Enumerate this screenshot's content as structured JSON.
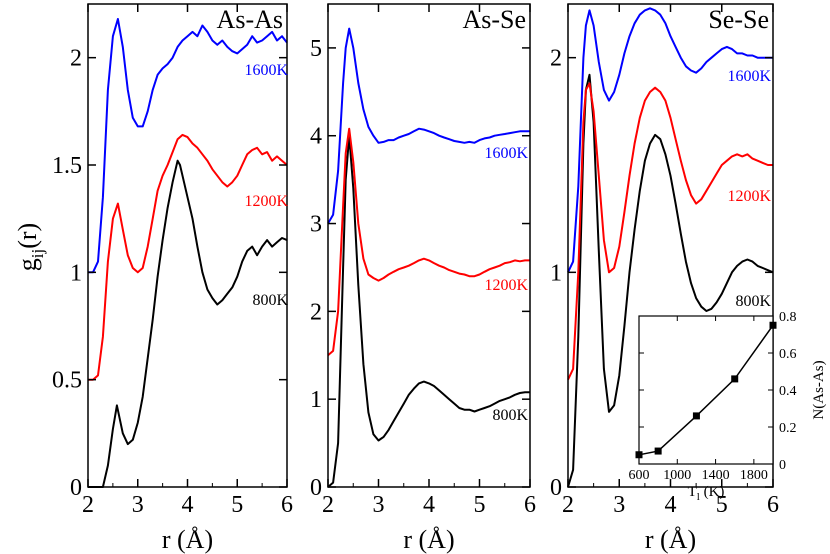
{
  "colors": {
    "800K": "#000000",
    "1200K": "#ff0000",
    "1600K": "#0000ff",
    "frame": "#000000"
  },
  "figure": {
    "xlabel": "r (Å)",
    "ylabel_main": "g",
    "ylabel_sub": "ij",
    "ylabel_tail": "(r)"
  },
  "chart_data": [
    {
      "type": "line",
      "title": "As-As",
      "xlabel": "r (Å)",
      "ylabel": "gij(r)",
      "xlim": [
        2,
        6
      ],
      "ylim": [
        0,
        2.25
      ],
      "xticks": [
        2,
        3,
        4,
        5,
        6
      ],
      "yticks": [
        0,
        0.5,
        1,
        1.5,
        2
      ],
      "ytick_labels": [
        "0",
        "0.5",
        "1",
        "1.5",
        "2"
      ],
      "series": [
        {
          "name": "800K",
          "color": "#000000",
          "x": [
            2.0,
            2.2,
            2.3,
            2.4,
            2.5,
            2.58,
            2.7,
            2.8,
            2.9,
            3.0,
            3.1,
            3.2,
            3.3,
            3.4,
            3.5,
            3.6,
            3.7,
            3.8,
            3.85,
            3.9,
            4.0,
            4.1,
            4.2,
            4.3,
            4.4,
            4.5,
            4.6,
            4.7,
            4.8,
            4.9,
            5.0,
            5.1,
            5.2,
            5.3,
            5.4,
            5.5,
            5.6,
            5.7,
            5.8,
            5.9,
            6.0
          ],
          "y": [
            0.0,
            0.0,
            0.0,
            0.1,
            0.27,
            0.38,
            0.25,
            0.2,
            0.22,
            0.3,
            0.42,
            0.6,
            0.78,
            0.98,
            1.15,
            1.3,
            1.42,
            1.52,
            1.5,
            1.45,
            1.35,
            1.25,
            1.12,
            1.0,
            0.92,
            0.88,
            0.85,
            0.87,
            0.9,
            0.93,
            0.98,
            1.05,
            1.1,
            1.12,
            1.08,
            1.12,
            1.15,
            1.12,
            1.14,
            1.16,
            1.15
          ]
        },
        {
          "name": "1200K",
          "color": "#ff0000",
          "x": [
            2.0,
            2.1,
            2.2,
            2.3,
            2.4,
            2.5,
            2.6,
            2.7,
            2.8,
            2.9,
            3.0,
            3.1,
            3.2,
            3.3,
            3.4,
            3.5,
            3.6,
            3.7,
            3.8,
            3.9,
            4.0,
            4.1,
            4.2,
            4.3,
            4.4,
            4.5,
            4.6,
            4.7,
            4.8,
            4.9,
            5.0,
            5.1,
            5.2,
            5.3,
            5.4,
            5.5,
            5.6,
            5.7,
            5.8,
            5.9,
            6.0
          ],
          "y": [
            0.5,
            0.5,
            0.52,
            0.7,
            1.05,
            1.25,
            1.32,
            1.2,
            1.08,
            1.02,
            1.0,
            1.02,
            1.12,
            1.25,
            1.38,
            1.45,
            1.5,
            1.56,
            1.62,
            1.64,
            1.63,
            1.6,
            1.58,
            1.55,
            1.52,
            1.48,
            1.45,
            1.42,
            1.4,
            1.42,
            1.45,
            1.5,
            1.55,
            1.57,
            1.58,
            1.55,
            1.56,
            1.52,
            1.54,
            1.52,
            1.5
          ]
        },
        {
          "name": "1600K",
          "color": "#0000ff",
          "x": [
            2.0,
            2.1,
            2.2,
            2.3,
            2.4,
            2.5,
            2.6,
            2.7,
            2.8,
            2.9,
            3.0,
            3.1,
            3.2,
            3.3,
            3.4,
            3.5,
            3.6,
            3.7,
            3.8,
            3.9,
            4.0,
            4.1,
            4.2,
            4.3,
            4.4,
            4.5,
            4.6,
            4.7,
            4.8,
            4.9,
            5.0,
            5.1,
            5.2,
            5.3,
            5.4,
            5.5,
            5.6,
            5.7,
            5.8,
            5.9,
            6.0
          ],
          "y": [
            1.0,
            1.0,
            1.05,
            1.35,
            1.85,
            2.1,
            2.18,
            2.05,
            1.85,
            1.72,
            1.68,
            1.68,
            1.75,
            1.85,
            1.92,
            1.95,
            1.97,
            2.0,
            2.05,
            2.08,
            2.1,
            2.12,
            2.1,
            2.15,
            2.12,
            2.08,
            2.06,
            2.08,
            2.05,
            2.03,
            2.02,
            2.04,
            2.06,
            2.1,
            2.07,
            2.08,
            2.1,
            2.12,
            2.08,
            2.1,
            2.07
          ]
        }
      ]
    },
    {
      "type": "line",
      "title": "As-Se",
      "xlabel": "r (Å)",
      "ylabel": "",
      "xlim": [
        2,
        6
      ],
      "ylim": [
        0,
        5.5
      ],
      "xticks": [
        2,
        3,
        4,
        5,
        6
      ],
      "yticks": [
        0,
        1,
        2,
        3,
        4,
        5
      ],
      "ytick_labels": [
        "0",
        "1",
        "2",
        "3",
        "4",
        "5"
      ],
      "series": [
        {
          "name": "800K",
          "color": "#000000",
          "x": [
            2.0,
            2.1,
            2.2,
            2.3,
            2.35,
            2.42,
            2.5,
            2.6,
            2.7,
            2.8,
            2.9,
            3.0,
            3.1,
            3.2,
            3.3,
            3.4,
            3.5,
            3.6,
            3.7,
            3.8,
            3.9,
            4.0,
            4.1,
            4.2,
            4.3,
            4.4,
            4.5,
            4.6,
            4.7,
            4.8,
            4.9,
            5.0,
            5.1,
            5.2,
            5.3,
            5.4,
            5.5,
            5.6,
            5.7,
            5.8,
            5.9,
            6.0
          ],
          "y": [
            0.0,
            0.05,
            0.5,
            2.5,
            3.5,
            4.0,
            3.4,
            2.3,
            1.4,
            0.85,
            0.6,
            0.53,
            0.57,
            0.65,
            0.75,
            0.85,
            0.95,
            1.05,
            1.12,
            1.18,
            1.2,
            1.18,
            1.15,
            1.1,
            1.05,
            1.0,
            0.95,
            0.9,
            0.88,
            0.88,
            0.86,
            0.88,
            0.9,
            0.92,
            0.95,
            0.98,
            1.0,
            1.02,
            1.05,
            1.07,
            1.08,
            1.08
          ]
        },
        {
          "name": "1200K",
          "color": "#ff0000",
          "x": [
            2.0,
            2.1,
            2.2,
            2.3,
            2.35,
            2.42,
            2.5,
            2.6,
            2.7,
            2.8,
            2.9,
            3.0,
            3.1,
            3.2,
            3.3,
            3.4,
            3.5,
            3.6,
            3.7,
            3.8,
            3.9,
            4.0,
            4.1,
            4.2,
            4.3,
            4.4,
            4.5,
            4.6,
            4.7,
            4.8,
            4.9,
            5.0,
            5.1,
            5.2,
            5.3,
            5.4,
            5.5,
            5.6,
            5.7,
            5.8,
            5.9,
            6.0
          ],
          "y": [
            1.5,
            1.55,
            2.0,
            3.2,
            3.8,
            4.08,
            3.7,
            3.0,
            2.6,
            2.42,
            2.38,
            2.35,
            2.38,
            2.42,
            2.45,
            2.48,
            2.5,
            2.52,
            2.55,
            2.58,
            2.6,
            2.58,
            2.55,
            2.52,
            2.5,
            2.47,
            2.45,
            2.43,
            2.42,
            2.4,
            2.4,
            2.42,
            2.45,
            2.48,
            2.5,
            2.52,
            2.55,
            2.56,
            2.58,
            2.57,
            2.58,
            2.58
          ]
        },
        {
          "name": "1600K",
          "color": "#0000ff",
          "x": [
            2.0,
            2.1,
            2.2,
            2.3,
            2.35,
            2.42,
            2.5,
            2.6,
            2.7,
            2.8,
            2.9,
            3.0,
            3.1,
            3.2,
            3.3,
            3.4,
            3.5,
            3.6,
            3.7,
            3.8,
            3.9,
            4.0,
            4.1,
            4.2,
            4.3,
            4.4,
            4.5,
            4.6,
            4.7,
            4.8,
            4.9,
            5.0,
            5.1,
            5.2,
            5.3,
            5.4,
            5.5,
            5.6,
            5.7,
            5.8,
            5.9,
            6.0
          ],
          "y": [
            3.0,
            3.1,
            3.6,
            4.6,
            5.0,
            5.22,
            5.0,
            4.6,
            4.3,
            4.1,
            4.0,
            3.92,
            3.93,
            3.95,
            3.95,
            3.98,
            4.0,
            4.02,
            4.05,
            4.08,
            4.07,
            4.05,
            4.03,
            4.0,
            3.98,
            3.96,
            3.94,
            3.93,
            3.92,
            3.93,
            3.92,
            3.95,
            3.97,
            3.98,
            4.0,
            4.01,
            4.02,
            4.03,
            4.04,
            4.05,
            4.05,
            4.05
          ]
        }
      ]
    },
    {
      "type": "line",
      "title": "Se-Se",
      "xlabel": "r (Å)",
      "ylabel": "",
      "xlim": [
        2,
        6
      ],
      "ylim": [
        0,
        2.25
      ],
      "xticks": [
        2,
        3,
        4,
        5,
        6
      ],
      "yticks": [
        0,
        1,
        2
      ],
      "ytick_labels": [
        "0",
        "1",
        "2"
      ],
      "series": [
        {
          "name": "800K",
          "color": "#000000",
          "x": [
            2.0,
            2.1,
            2.2,
            2.3,
            2.35,
            2.42,
            2.5,
            2.6,
            2.7,
            2.8,
            2.9,
            3.0,
            3.1,
            3.2,
            3.3,
            3.4,
            3.5,
            3.6,
            3.7,
            3.8,
            3.9,
            4.0,
            4.1,
            4.2,
            4.3,
            4.4,
            4.5,
            4.6,
            4.7,
            4.8,
            4.9,
            5.0,
            5.1,
            5.2,
            5.3,
            5.4,
            5.5,
            5.6,
            5.7,
            5.8,
            5.9,
            6.0
          ],
          "y": [
            0.0,
            0.08,
            0.7,
            1.6,
            1.85,
            1.92,
            1.7,
            1.1,
            0.55,
            0.35,
            0.38,
            0.52,
            0.75,
            1.0,
            1.2,
            1.38,
            1.52,
            1.6,
            1.64,
            1.62,
            1.55,
            1.45,
            1.32,
            1.18,
            1.05,
            0.95,
            0.88,
            0.84,
            0.82,
            0.83,
            0.86,
            0.9,
            0.95,
            1.0,
            1.03,
            1.05,
            1.06,
            1.05,
            1.03,
            1.02,
            1.01,
            1.0
          ]
        },
        {
          "name": "1200K",
          "color": "#ff0000",
          "x": [
            2.0,
            2.1,
            2.2,
            2.3,
            2.35,
            2.42,
            2.5,
            2.6,
            2.7,
            2.8,
            2.9,
            3.0,
            3.1,
            3.2,
            3.3,
            3.4,
            3.5,
            3.6,
            3.7,
            3.8,
            3.9,
            4.0,
            4.1,
            4.2,
            4.3,
            4.4,
            4.5,
            4.6,
            4.7,
            4.8,
            4.9,
            5.0,
            5.1,
            5.2,
            5.3,
            5.4,
            5.5,
            5.6,
            5.7,
            5.8,
            5.9,
            6.0
          ],
          "y": [
            0.5,
            0.55,
            1.0,
            1.7,
            1.85,
            1.88,
            1.75,
            1.45,
            1.15,
            1.0,
            1.02,
            1.12,
            1.28,
            1.45,
            1.6,
            1.72,
            1.8,
            1.84,
            1.86,
            1.84,
            1.8,
            1.72,
            1.62,
            1.52,
            1.43,
            1.36,
            1.32,
            1.34,
            1.38,
            1.42,
            1.46,
            1.5,
            1.52,
            1.54,
            1.55,
            1.54,
            1.55,
            1.53,
            1.52,
            1.51,
            1.5,
            1.5
          ]
        },
        {
          "name": "1600K",
          "color": "#0000ff",
          "x": [
            2.0,
            2.1,
            2.2,
            2.3,
            2.35,
            2.42,
            2.5,
            2.6,
            2.7,
            2.8,
            2.9,
            3.0,
            3.1,
            3.2,
            3.3,
            3.4,
            3.5,
            3.6,
            3.7,
            3.8,
            3.9,
            4.0,
            4.1,
            4.2,
            4.3,
            4.4,
            4.5,
            4.6,
            4.7,
            4.8,
            4.9,
            5.0,
            5.1,
            5.2,
            5.3,
            5.4,
            5.5,
            5.6,
            5.7,
            5.8,
            5.9,
            6.0
          ],
          "y": [
            1.0,
            1.05,
            1.4,
            2.0,
            2.15,
            2.22,
            2.15,
            1.98,
            1.85,
            1.8,
            1.84,
            1.92,
            2.02,
            2.1,
            2.16,
            2.2,
            2.22,
            2.23,
            2.22,
            2.2,
            2.16,
            2.1,
            2.05,
            2.0,
            1.96,
            1.94,
            1.93,
            1.95,
            1.98,
            2.0,
            2.02,
            2.04,
            2.05,
            2.04,
            2.02,
            2.02,
            2.01,
            2.01,
            2.0,
            2.0,
            2.0,
            2.0
          ]
        }
      ]
    },
    {
      "type": "line",
      "title": "",
      "xlabel": "T",
      "xlabel_sub": "l",
      "xlabel_tail": " (K)",
      "ylabel": "N(As-As)",
      "xlim": [
        600,
        2000
      ],
      "ylim": [
        0,
        0.8
      ],
      "xticks": [
        600,
        1000,
        1400,
        1800
      ],
      "yticks": [
        0,
        0.2,
        0.4,
        0.6,
        0.8
      ],
      "ytick_labels": [
        "0",
        "0.2",
        "0.4",
        "0.6",
        "0.8"
      ],
      "series": [
        {
          "name": "N(As-As)",
          "color": "#000000",
          "marker": "square",
          "x": [
            600,
            800,
            1200,
            1600,
            2000
          ],
          "y": [
            0.05,
            0.07,
            0.26,
            0.46,
            0.75
          ]
        }
      ]
    }
  ]
}
